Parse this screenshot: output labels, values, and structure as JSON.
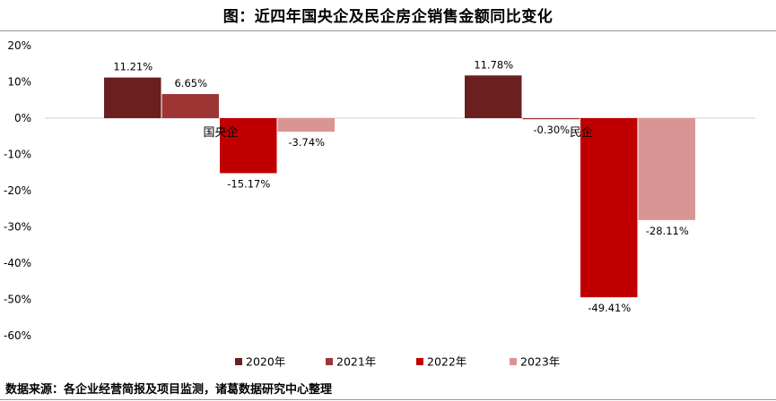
{
  "title": "图：近四年国央企及民企房企销售金额同比变化",
  "source": "数据来源：各企业经营简报及项目监测，诸葛数据研究中心整理",
  "chart_data": {
    "type": "bar",
    "categories": [
      "国央企",
      "民企"
    ],
    "series": [
      {
        "name": "2020年",
        "color": "#6b1f1f",
        "values": [
          11.21,
          11.78
        ],
        "labels": [
          "11.21%",
          "11.78%"
        ]
      },
      {
        "name": "2021年",
        "color": "#9e3535",
        "values": [
          6.65,
          -0.3
        ],
        "labels": [
          "6.65%",
          "-0.30%"
        ]
      },
      {
        "name": "2022年",
        "color": "#c00000",
        "values": [
          -15.17,
          -49.41
        ],
        "labels": [
          "-15.17%",
          "-49.41%"
        ]
      },
      {
        "name": "2023年",
        "color": "#d99594",
        "values": [
          -3.74,
          -28.11
        ],
        "labels": [
          "-3.74%",
          "-28.11%"
        ]
      }
    ],
    "y_ticks": [
      20,
      10,
      0,
      -10,
      -20,
      -30,
      -40,
      -50,
      -60
    ],
    "y_tick_labels": [
      "20%",
      "10%",
      "0%",
      "-10%",
      "-20%",
      "-30%",
      "-40%",
      "-50%",
      "-60%"
    ],
    "ylim": [
      -60,
      20
    ],
    "legend_position": "bottom",
    "grid": false
  }
}
